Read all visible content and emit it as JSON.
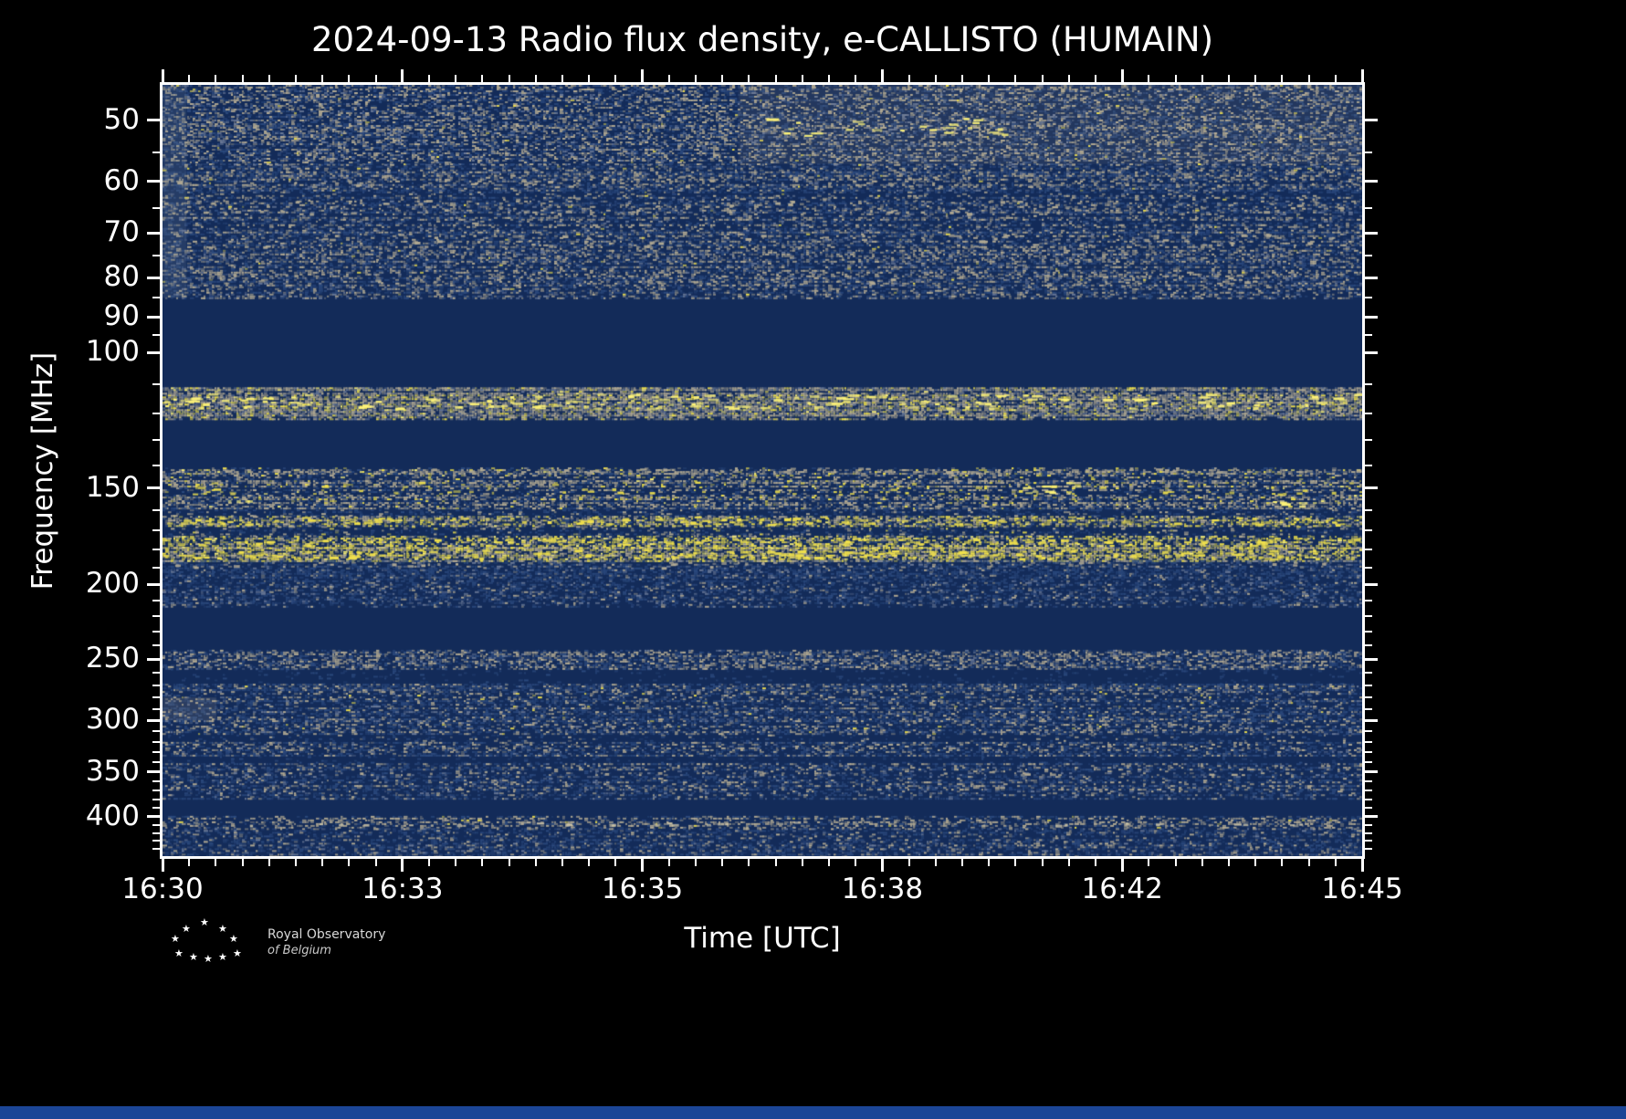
{
  "title": "2024-09-13 Radio flux density, e-CALLISTO (HUMAIN)",
  "footer": {
    "logo_line1": "Royal Observatory",
    "logo_line2": "of Belgium",
    "star_glyph": "★"
  },
  "colors": {
    "background": "#000000",
    "frame": "#ffffff",
    "bottom_bar": "#1b4596"
  },
  "chart_data": {
    "type": "heatmap",
    "subtype": "radio-spectrogram",
    "title": "2024-09-13 Radio flux density, e-CALLISTO (HUMAIN)",
    "xlabel": "Time [UTC]",
    "ylabel": "Frequency [MHz]",
    "x_tick_labels": [
      "16:30",
      "16:33",
      "16:35",
      "16:38",
      "16:42",
      "16:45"
    ],
    "x_minor_intervals": 45,
    "y_scale": "log",
    "y_range": [
      45,
      450
    ],
    "y_tick_values": [
      50,
      60,
      70,
      80,
      90,
      100,
      150,
      200,
      250,
      300,
      350,
      400
    ],
    "y_minor_values": [
      55,
      65,
      75,
      85,
      95,
      110,
      120,
      130,
      140,
      160,
      170,
      180,
      190,
      210,
      220,
      230,
      240,
      260,
      270,
      280,
      290,
      310,
      320,
      330,
      340,
      360,
      370,
      380,
      390,
      410,
      420,
      430,
      440
    ],
    "legend": "none",
    "grid": false,
    "palette": {
      "navy": "#132b59",
      "blue": "#2c4a7e",
      "blue2": "#3d5c8e",
      "slate": "#6b7a98",
      "tan": "#b4ab93",
      "tan2": "#ccc3a6",
      "yellow": "#f2e24c",
      "bright": "#fff478"
    },
    "bands": [
      {
        "f0": 45,
        "f1": 57,
        "layers": {
          "blue": 0.22,
          "slate": 0.1,
          "tan": 0.22,
          "yellow": 0.004
        },
        "rowvar": 0.6
      },
      {
        "f0": 57,
        "f1": 85,
        "layers": {
          "blue": 0.25,
          "slate": 0.08,
          "tan": 0.2,
          "yellow": 0.003
        },
        "rowvar": 0.85
      },
      {
        "f0": 85,
        "f1": 111
      },
      {
        "f0": 111,
        "f1": 122,
        "layers": {
          "tan": 0.4,
          "slate": 0.12,
          "yellow": 0.1,
          "bright": 0.03
        },
        "rowvar": 0.75
      },
      {
        "f0": 122,
        "f1": 141
      },
      {
        "f0": 141,
        "f1": 159,
        "layers": {
          "tan": 0.3,
          "blue": 0.18,
          "yellow": 0.05,
          "bright": 0.006
        },
        "rowvar": 0.8
      },
      {
        "f0": 159,
        "f1": 163,
        "layers": {
          "blue": 0.18,
          "tan": 0.08
        },
        "rowvar": 0.5
      },
      {
        "f0": 163,
        "f1": 168,
        "layers": {
          "tan": 0.25,
          "yellow": 0.22,
          "bright": 0.04,
          "blue": 0.1
        },
        "rowvar": 0.6
      },
      {
        "f0": 168,
        "f1": 173,
        "layers": {
          "blue": 0.15,
          "tan": 0.1,
          "yellow": 0.02
        },
        "rowvar": 0.5
      },
      {
        "f0": 173,
        "f1": 179,
        "layers": {
          "tan": 0.25,
          "yellow": 0.28,
          "bright": 0.05,
          "blue": 0.08
        },
        "rowvar": 0.55
      },
      {
        "f0": 179,
        "f1": 186,
        "layers": {
          "tan": 0.3,
          "yellow": 0.3,
          "bright": 0.06
        },
        "rowvar": 0.5
      },
      {
        "f0": 186,
        "f1": 214,
        "layers": {
          "blue": 0.3,
          "slate": 0.08,
          "tan": 0.06
        },
        "rowvar": 0.75
      },
      {
        "f0": 214,
        "f1": 243
      },
      {
        "f0": 243,
        "f1": 257,
        "layers": {
          "tan": 0.26,
          "blue": 0.2,
          "slate": 0.06
        },
        "rowvar": 0.6
      },
      {
        "f0": 257,
        "f1": 269,
        "layers": {
          "blue": 0.06
        },
        "rowvar": 0.5
      },
      {
        "f0": 269,
        "f1": 313,
        "layers": {
          "blue": 0.28,
          "tan": 0.16,
          "slate": 0.07,
          "yellow": 0.004
        },
        "rowvar": 0.8
      },
      {
        "f0": 313,
        "f1": 320,
        "layers": {
          "blue": 0.1,
          "tan": 0.04
        },
        "rowvar": 0.5
      },
      {
        "f0": 320,
        "f1": 334,
        "layers": {
          "blue": 0.26,
          "tan": 0.14,
          "slate": 0.06
        },
        "rowvar": 0.75
      },
      {
        "f0": 334,
        "f1": 341,
        "layers": {
          "blue": 0.08
        },
        "rowvar": 0.5
      },
      {
        "f0": 341,
        "f1": 380,
        "layers": {
          "blue": 0.26,
          "tan": 0.12,
          "slate": 0.05
        },
        "rowvar": 0.8
      },
      {
        "f0": 380,
        "f1": 399
      },
      {
        "f0": 399,
        "f1": 414,
        "layers": {
          "tan": 0.3,
          "blue": 0.18,
          "yellow": 0.01
        },
        "rowvar": 0.6
      },
      {
        "f0": 414,
        "f1": 450,
        "layers": {
          "blue": 0.24,
          "tan": 0.1,
          "slate": 0.05
        },
        "rowvar": 0.75
      }
    ],
    "hotspots": [
      {
        "mode": "wash",
        "f0": 45,
        "f1": 85,
        "t0": 0.0,
        "t1": 0.02,
        "color": "slate",
        "alpha": 0.22
      },
      {
        "mode": "wash",
        "f0": 45,
        "f1": 57,
        "t0": 0.48,
        "t1": 1.0,
        "color": "tan",
        "alpha": 0.1
      },
      {
        "mode": "wash",
        "f0": 280,
        "f1": 300,
        "t0": 0.0,
        "t1": 0.045,
        "color": "tan",
        "alpha": 0.15
      },
      {
        "f0": 49.5,
        "f1": 52.5,
        "t0": 0.5,
        "t1": 0.7,
        "color": "bright",
        "density": 0.05,
        "len": 10
      },
      {
        "f0": 113,
        "f1": 118,
        "t0": 0.0,
        "t1": 1.0,
        "color": "bright",
        "density": 0.1,
        "len": 9
      },
      {
        "f0": 141,
        "f1": 143,
        "t0": 0.0,
        "t1": 1.0,
        "color": "tan",
        "density": 0.1,
        "len": 6
      },
      {
        "f0": 147,
        "f1": 153,
        "t0": 0.0,
        "t1": 1.0,
        "color": "yellow",
        "density": 0.035,
        "len": 6
      },
      {
        "f0": 146,
        "f1": 152,
        "t0": 0.71,
        "t1": 0.76,
        "color": "bright",
        "density": 0.12,
        "len": 8
      },
      {
        "f0": 155,
        "f1": 158,
        "t0": 0.05,
        "t1": 0.07,
        "color": "bright",
        "density": 0.22,
        "len": 8
      },
      {
        "f0": 155,
        "f1": 158,
        "t0": 0.92,
        "t1": 0.95,
        "color": "bright",
        "density": 0.2,
        "len": 8
      },
      {
        "f0": 59,
        "f1": 61,
        "t0": 0.0,
        "t1": 1.0,
        "color": "tan",
        "density": 0.05,
        "len": 5
      },
      {
        "f0": 63,
        "f1": 66,
        "t0": 0.0,
        "t1": 1.0,
        "color": "tan",
        "density": 0.06,
        "len": 5
      },
      {
        "f0": 70,
        "f1": 73,
        "t0": 0.0,
        "t1": 1.0,
        "color": "tan",
        "density": 0.06,
        "len": 5
      },
      {
        "f0": 79,
        "f1": 82,
        "t0": 0.0,
        "t1": 1.0,
        "color": "tan",
        "density": 0.05,
        "len": 5
      },
      {
        "f0": 187,
        "f1": 190,
        "t0": 0.0,
        "t1": 1.0,
        "color": "tan",
        "density": 0.07,
        "len": 5
      },
      {
        "f0": 349,
        "f1": 352,
        "t0": 0.0,
        "t1": 1.0,
        "color": "tan",
        "density": 0.08,
        "len": 5
      },
      {
        "f0": 406,
        "f1": 410,
        "t0": 0.0,
        "t1": 1.0,
        "color": "tan2",
        "density": 0.1,
        "len": 6
      },
      {
        "f0": 163,
        "f1": 167,
        "t0": 0.0,
        "t1": 1.0,
        "color": "yellow",
        "density": 0.12,
        "len": 7
      },
      {
        "f0": 174,
        "f1": 178,
        "t0": 0.0,
        "t1": 1.0,
        "color": "yellow",
        "density": 0.14,
        "len": 7
      },
      {
        "f0": 180,
        "f1": 185,
        "t0": 0.0,
        "t1": 1.0,
        "color": "yellow",
        "density": 0.16,
        "len": 7
      }
    ]
  }
}
